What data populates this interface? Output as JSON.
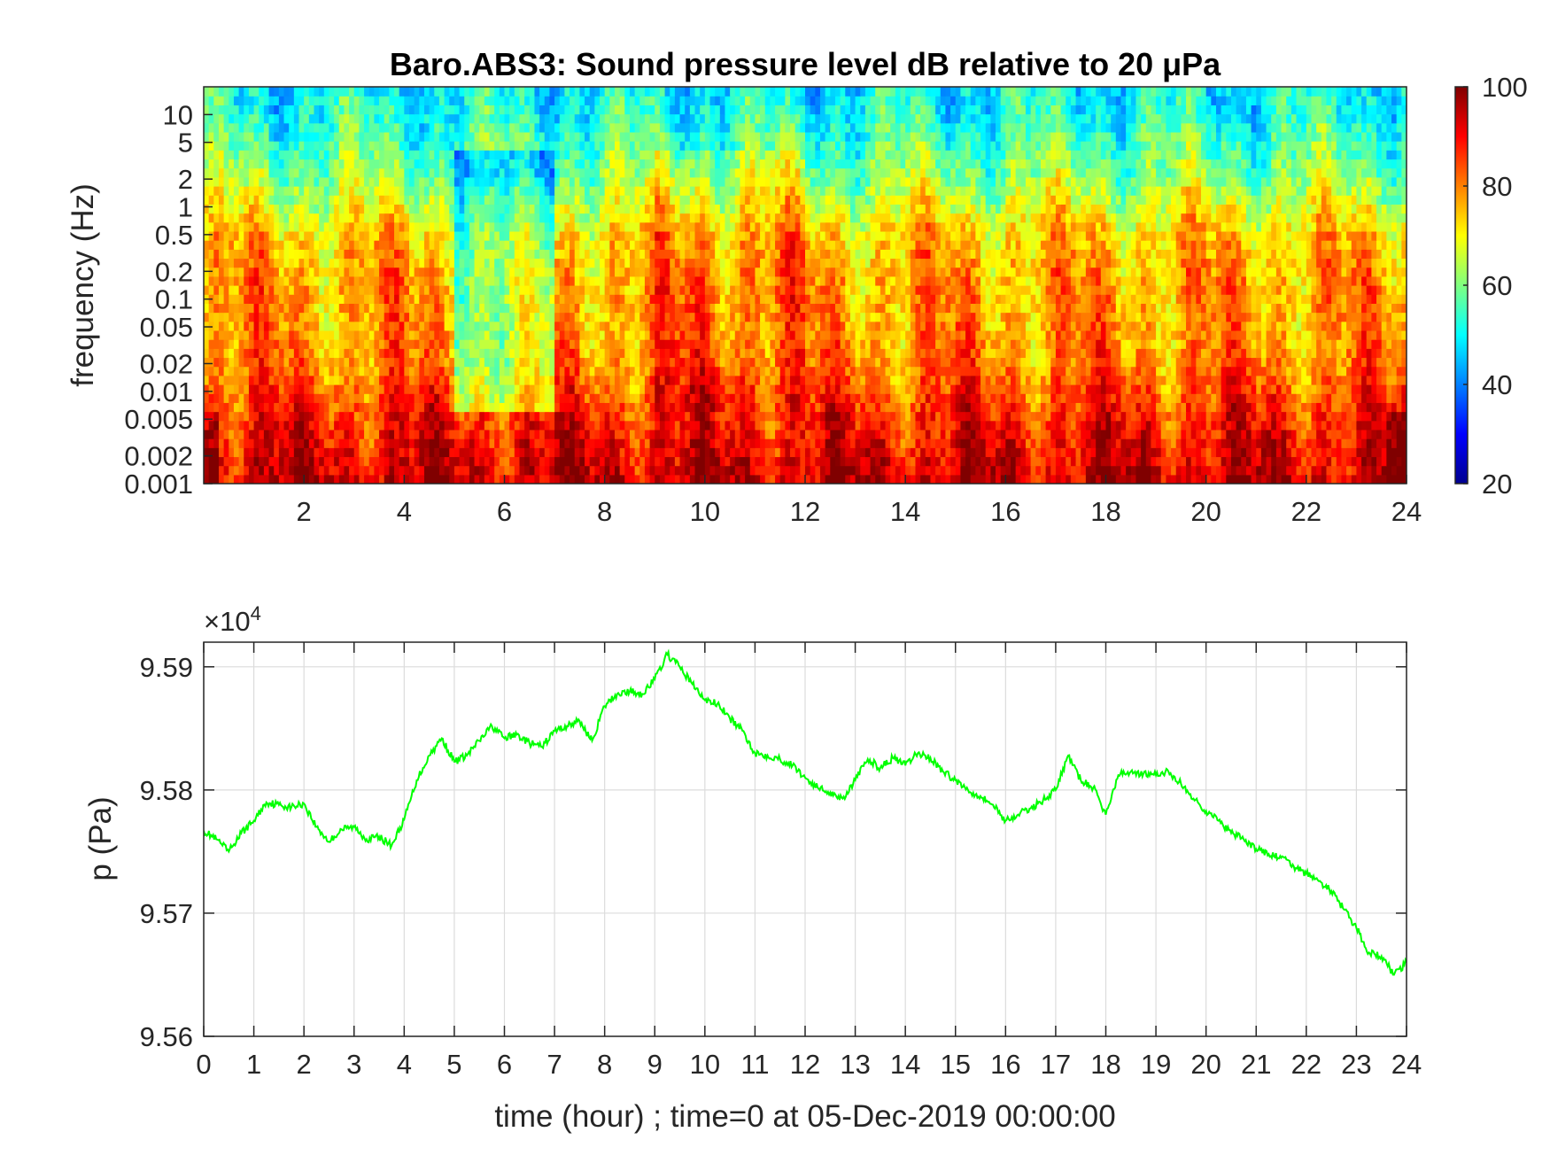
{
  "chart_data": [
    {
      "type": "heatmap",
      "title": "Baro.ABS3: Sound pressure level dB relative to 20 μPa",
      "ylabel": "frequency (Hz)",
      "xlabel": "",
      "x_range": [
        0,
        24
      ],
      "x_ticks": [
        "2",
        "4",
        "6",
        "8",
        "10",
        "12",
        "14",
        "16",
        "18",
        "20",
        "22",
        "24"
      ],
      "y_scale": "log",
      "y_range": [
        0.001,
        20
      ],
      "y_ticks": [
        "0.001",
        "0.002",
        "0.005",
        "0.01",
        "0.02",
        "0.05",
        "0.1",
        "0.2",
        "0.5",
        "1",
        "2",
        "5",
        "10"
      ],
      "colorbar": {
        "colormap": "jet",
        "range": [
          20,
          100
        ],
        "ticks": [
          "20",
          "40",
          "60",
          "80",
          "100"
        ]
      },
      "level_by_frequency_dB": {
        "freq_Hz": [
          0.001,
          0.002,
          0.005,
          0.01,
          0.02,
          0.05,
          0.1,
          0.2,
          0.5,
          1,
          2,
          5,
          10,
          20
        ],
        "typical_dB": [
          95,
          92,
          88,
          84,
          80,
          78,
          78,
          77,
          74,
          68,
          62,
          56,
          52,
          50
        ]
      },
      "quiet_interval_hours": [
        5,
        7
      ],
      "active_interval_hours": [
        9,
        12
      ],
      "grid": false
    },
    {
      "type": "line",
      "xlabel": "time (hour) ; time=0 at 05-Dec-2019 00:00:00",
      "ylabel": "p (Pa)",
      "y_multiplier": "×10",
      "y_multiplier_exp": "4",
      "xlim": [
        0,
        24
      ],
      "ylim": [
        9.56,
        9.592
      ],
      "x_ticks": [
        "0",
        "1",
        "2",
        "3",
        "4",
        "5",
        "6",
        "7",
        "8",
        "9",
        "10",
        "11",
        "12",
        "13",
        "14",
        "15",
        "16",
        "17",
        "18",
        "19",
        "20",
        "21",
        "22",
        "23",
        "24"
      ],
      "y_ticks": [
        "9.56",
        "9.57",
        "9.58",
        "9.59"
      ],
      "grid": true,
      "line_color": "#00ff00",
      "series": [
        {
          "x": [
            0,
            0.25,
            0.5,
            0.75,
            1,
            1.25,
            1.5,
            1.75,
            2,
            2.25,
            2.5,
            2.75,
            3,
            3.25,
            3.5,
            3.75,
            4,
            4.25,
            4.5,
            4.75,
            5,
            5.25,
            5.5,
            5.75,
            6,
            6.25,
            6.5,
            6.75,
            7,
            7.25,
            7.5,
            7.75,
            8,
            8.25,
            8.5,
            8.75,
            9,
            9.25,
            9.5,
            9.75,
            10,
            10.25,
            10.5,
            10.75,
            11,
            11.25,
            11.5,
            11.75,
            12,
            12.25,
            12.5,
            12.75,
            13,
            13.25,
            13.5,
            13.75,
            14,
            14.25,
            14.5,
            14.75,
            15,
            15.25,
            15.5,
            15.75,
            16,
            16.25,
            16.5,
            16.75,
            17,
            17.25,
            17.5,
            17.75,
            18,
            18.25,
            18.5,
            18.75,
            19,
            19.25,
            19.5,
            19.75,
            20,
            20.25,
            20.5,
            20.75,
            21,
            21.25,
            21.5,
            21.75,
            22,
            22.25,
            22.5,
            22.75,
            23,
            23.25,
            23.5,
            23.75,
            24
          ],
          "values": [
            9.5767,
            9.576,
            9.575,
            9.5765,
            9.5775,
            9.579,
            9.5788,
            9.5786,
            9.5789,
            9.577,
            9.5758,
            9.5768,
            9.577,
            9.576,
            9.5762,
            9.5755,
            9.5776,
            9.5808,
            9.5828,
            9.5842,
            9.5823,
            9.5828,
            9.584,
            9.5852,
            9.5842,
            9.5845,
            9.5838,
            9.5835,
            9.5848,
            9.5852,
            9.5856,
            9.584,
            9.5868,
            9.5878,
            9.588,
            9.5878,
            9.589,
            9.591,
            9.59,
            9.5886,
            9.5873,
            9.587,
            9.5858,
            9.5848,
            9.583,
            9.5828,
            9.5825,
            9.582,
            9.581,
            9.5802,
            9.5798,
            9.5793,
            9.5808,
            9.5825,
            9.5818,
            9.5826,
            9.582,
            9.583,
            9.5826,
            9.5815,
            9.5808,
            9.58,
            9.5795,
            9.5788,
            9.5775,
            9.578,
            9.5785,
            9.5792,
            9.58,
            9.5828,
            9.5808,
            9.5802,
            9.578,
            9.5812,
            9.5815,
            9.5813,
            9.5812,
            9.5815,
            9.5805,
            9.5793,
            9.5783,
            9.5775,
            9.5765,
            9.576,
            9.5752,
            9.5748,
            9.5745,
            9.5738,
            9.5732,
            9.5726,
            9.5718,
            9.5703,
            9.5688,
            9.5668,
            9.5665,
            9.565,
            9.566
          ]
        }
      ]
    }
  ]
}
